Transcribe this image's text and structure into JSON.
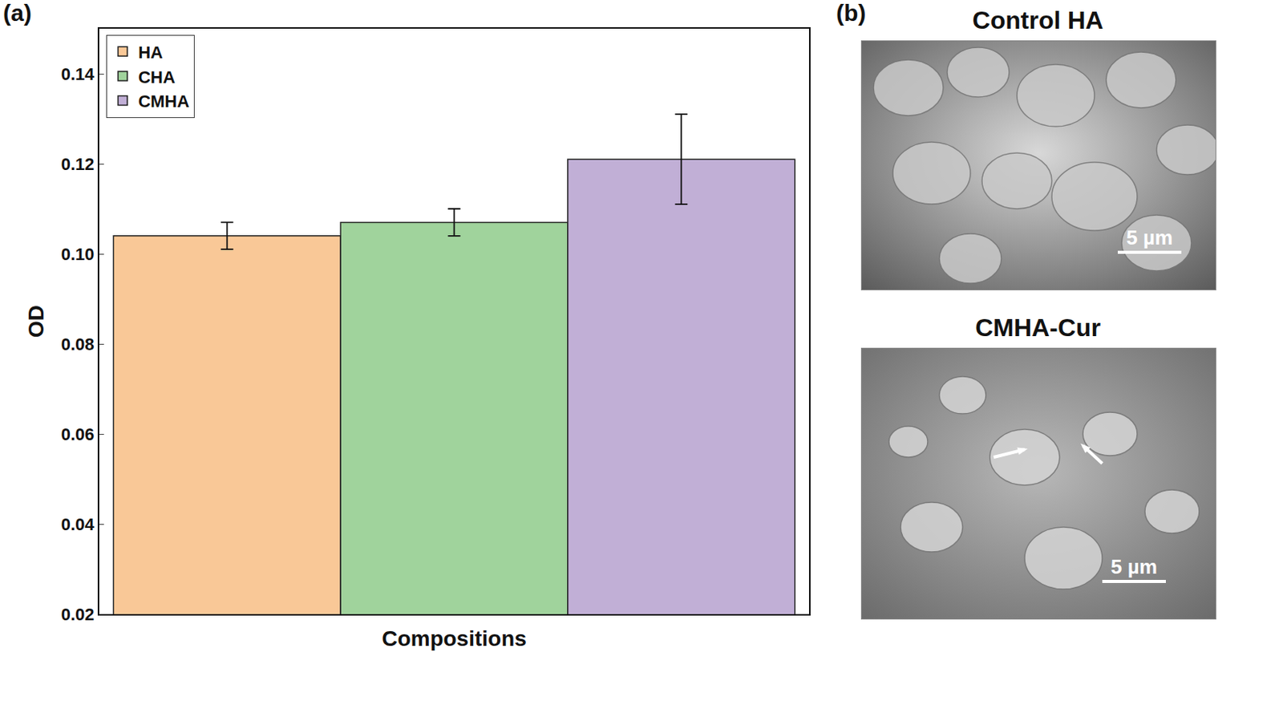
{
  "chart_data": {
    "type": "bar",
    "x_label": "Compositions",
    "y_label": "OD",
    "categories": [
      null
    ],
    "series": [
      {
        "name": "HA",
        "color": "#f9c897",
        "values": [
          0.104
        ],
        "errors": [
          0.003
        ]
      },
      {
        "name": "CHA",
        "color": "#a0d39c",
        "values": [
          0.107
        ],
        "errors": [
          0.003
        ]
      },
      {
        "name": "CMHA",
        "color": "#c1afd6",
        "values": [
          0.121
        ],
        "errors": [
          0.01
        ]
      }
    ],
    "ylim": [
      0.02,
      0.15
    ],
    "yticks": [
      0.02,
      0.04,
      0.06,
      0.08,
      {
        "value": 0.1,
        "label": "0.10"
      },
      0.12,
      0.14
    ],
    "grid": false,
    "legend": "upper left",
    "tick_labels": "y"
  },
  "panel_labels": [
    "(a)",
    "(b)"
  ],
  "images": [
    {
      "title": "Control HA",
      "scale_bar": "5 µm"
    },
    {
      "title": "CMHA-Cur",
      "scale_bar": "5 µm"
    }
  ]
}
